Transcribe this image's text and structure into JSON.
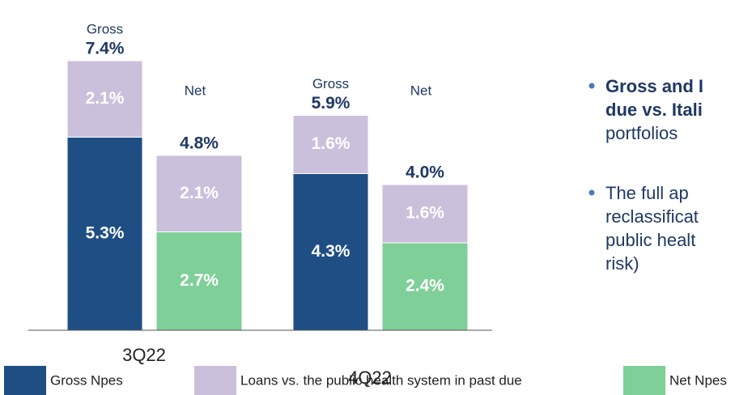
{
  "chart_data": {
    "type": "stacked_bar",
    "categories": [
      "3Q22",
      "4Q22"
    ],
    "legend": [
      {
        "name": "Gross Npes",
        "color": "#1f4e85"
      },
      {
        "name": "Loans vs. the public health system in past due",
        "color": "#cbc0dc"
      },
      {
        "name": "Net Npes",
        "color": "#7fcf98"
      }
    ],
    "stacks": [
      {
        "label": "Gross",
        "segments": [
          {
            "legend": 0,
            "values": [
              5.3,
              4.3
            ],
            "value_labels": [
              "5.3%",
              "4.3%"
            ]
          },
          {
            "legend": 1,
            "values": [
              2.1,
              1.6
            ],
            "value_labels": [
              "2.1%",
              "1.6%"
            ]
          }
        ],
        "totals": [
          7.4,
          5.9
        ],
        "total_labels": [
          "7.4%",
          "5.9%"
        ]
      },
      {
        "label": "Net",
        "segments": [
          {
            "legend": 2,
            "values": [
              2.7,
              2.4
            ],
            "value_labels": [
              "2.7%",
              "2.4%"
            ]
          },
          {
            "legend": 1,
            "values": [
              2.1,
              1.6
            ],
            "value_labels": [
              "2.1%",
              "1.6%"
            ]
          }
        ],
        "totals": [
          4.8,
          4.0
        ],
        "total_labels": [
          "4.8%",
          "4.0%"
        ]
      }
    ]
  },
  "notes": [
    {
      "lines": [
        {
          "text": "Gross and I",
          "bold": true
        },
        {
          "text": "due vs. Itali",
          "bold": true
        },
        {
          "text": "portfolios",
          "bold": false
        }
      ]
    },
    {
      "lines": [
        {
          "text": "The full ap",
          "bold": false
        },
        {
          "text": "reclassificat",
          "bold": false
        },
        {
          "text": "public healt",
          "bold": false
        },
        {
          "text": "risk)",
          "bold": false
        }
      ]
    }
  ]
}
